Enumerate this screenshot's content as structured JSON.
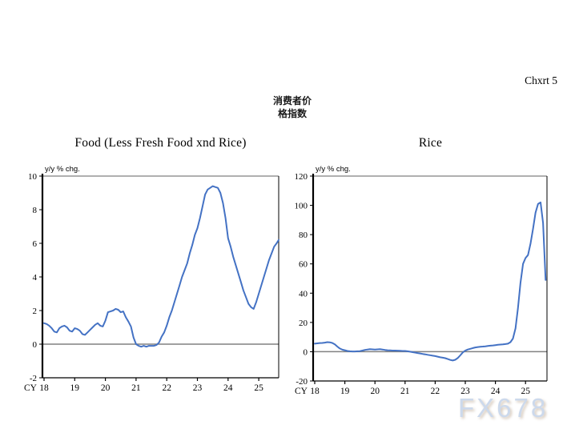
{
  "page": {
    "chart_label": "Chxrt 5",
    "subtitle_line1": "消费者价",
    "subtitle_line2": "格指数",
    "watermark": "FX678"
  },
  "colors": {
    "line": "#4472c4",
    "axis": "#000000",
    "grid": "#808080",
    "text": "#000000",
    "watermark": "#ccd9ec"
  },
  "chart_data": [
    {
      "type": "line",
      "title": "Food (Less Fresh Food xnd Rice)",
      "unit_label": "y/y % chg.",
      "x_axis_prefix": "CY",
      "x_tick_labels": [
        "18",
        "19",
        "20",
        "21",
        "22",
        "23",
        "24",
        "25"
      ],
      "x_start_year": 2018,
      "frequency": "monthly",
      "ylim": [
        -2,
        10
      ],
      "yticks": [
        10,
        8,
        6,
        4,
        2,
        0,
        -2
      ],
      "zero_line": true,
      "legend_position": "none",
      "series": [
        {
          "name": "Food (Less Fresh Food xnd Rice)",
          "values": [
            1.25,
            1.2,
            1.1,
            0.95,
            0.75,
            0.7,
            0.95,
            1.05,
            1.1,
            1.0,
            0.8,
            0.75,
            0.95,
            0.9,
            0.8,
            0.6,
            0.55,
            0.7,
            0.85,
            1.0,
            1.15,
            1.25,
            1.1,
            1.05,
            1.4,
            1.9,
            1.95,
            2.0,
            2.1,
            2.05,
            1.9,
            1.95,
            1.6,
            1.35,
            1.05,
            0.4,
            0.0,
            -0.1,
            -0.15,
            -0.1,
            -0.15,
            -0.1,
            -0.1,
            -0.1,
            -0.05,
            0.1,
            0.45,
            0.7,
            1.1,
            1.6,
            2.0,
            2.5,
            3.0,
            3.5,
            4.0,
            4.4,
            4.8,
            5.4,
            5.9,
            6.5,
            6.9,
            7.5,
            8.2,
            8.9,
            9.2,
            9.3,
            9.4,
            9.35,
            9.3,
            9.0,
            8.4,
            7.5,
            6.3,
            5.8,
            5.2,
            4.7,
            4.2,
            3.7,
            3.2,
            2.8,
            2.4,
            2.2,
            2.1,
            2.5,
            3.0,
            3.5,
            4.0,
            4.5,
            5.0,
            5.4,
            5.8,
            6.0,
            6.2
          ]
        }
      ]
    },
    {
      "type": "line",
      "title": "Rice",
      "unit_label": "y/y % chg.",
      "x_axis_prefix": "CY",
      "x_tick_labels": [
        "18",
        "19",
        "20",
        "21",
        "22",
        "23",
        "24",
        "25"
      ],
      "x_start_year": 2018,
      "frequency": "monthly",
      "ylim": [
        -20,
        120
      ],
      "yticks": [
        120,
        100,
        80,
        60,
        40,
        20,
        0,
        -20
      ],
      "zero_line": true,
      "legend_position": "none",
      "series": [
        {
          "name": "Rice",
          "values": [
            5.5,
            5.7,
            5.9,
            6.0,
            6.2,
            6.5,
            6.4,
            6.0,
            5.0,
            3.5,
            2.2,
            1.4,
            1.0,
            0.5,
            0.3,
            0.2,
            0.2,
            0.3,
            0.4,
            0.8,
            1.2,
            1.5,
            1.7,
            1.6,
            1.5,
            1.6,
            1.7,
            1.5,
            1.2,
            1.0,
            0.9,
            0.8,
            0.8,
            0.7,
            0.6,
            0.5,
            0.5,
            0.3,
            0.0,
            -0.3,
            -0.6,
            -0.9,
            -1.2,
            -1.5,
            -1.8,
            -2.1,
            -2.4,
            -2.7,
            -3.0,
            -3.4,
            -3.8,
            -4.1,
            -4.4,
            -5.0,
            -5.6,
            -6.0,
            -5.5,
            -4.3,
            -2.5,
            -0.5,
            0.8,
            1.5,
            2.0,
            2.5,
            2.9,
            3.2,
            3.4,
            3.5,
            3.7,
            3.9,
            4.1,
            4.3,
            4.5,
            4.7,
            4.9,
            5.0,
            5.2,
            5.5,
            6.5,
            9.0,
            16.0,
            30.0,
            47.0,
            60.0,
            64.0,
            66.0,
            74.0,
            84.0,
            95.0,
            101.0,
            102.0,
            88.0,
            49.0
          ]
        }
      ]
    }
  ]
}
